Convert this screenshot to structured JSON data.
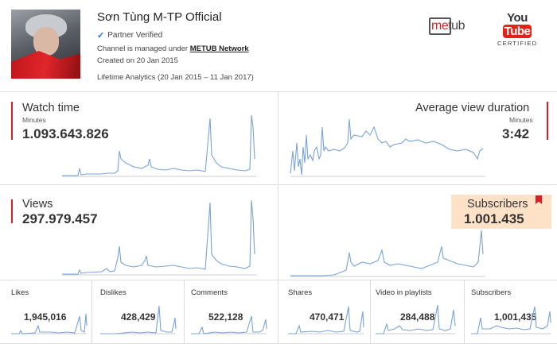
{
  "channel": {
    "name": "Sơn Tùng M-TP Official",
    "verified_label": "Partner Verified",
    "managed_prefix": "Channel is managed under ",
    "network": "METUB Network",
    "created": "Created on 20 Jan 2015",
    "lifetime": "Lifetime Analytics (20 Jan 2015 – 11 Jan 2017)"
  },
  "logos": {
    "metub_me": "me",
    "metub_tub": "tub",
    "youtube_you": "You",
    "youtube_tube": "Tube",
    "youtube_certified": "CERTIFIED"
  },
  "metrics": {
    "watch_time": {
      "title": "Watch time",
      "unit": "Minutes",
      "value": "1.093.643.826"
    },
    "avg_duration": {
      "title": "Average view duration",
      "unit": "Minutes",
      "value": "3:42"
    },
    "views": {
      "title": "Views",
      "value": "297.979.457"
    },
    "subscribers": {
      "title": "Subscribers",
      "value": "1.001.435"
    }
  },
  "small": [
    {
      "title": "Likes",
      "value": "1,945,016"
    },
    {
      "title": "Dislikes",
      "value": "428,429"
    },
    {
      "title": "Comments",
      "value": "522,128"
    },
    {
      "title": "Shares",
      "value": "470,471"
    },
    {
      "title": "Video in playlists",
      "value": "284,488"
    },
    {
      "title": "Subscribers",
      "value": "1,001,435"
    }
  ],
  "colors": {
    "accent": "#d81f26",
    "line": "#7aa3d6",
    "highlight": "#fde2c8"
  }
}
